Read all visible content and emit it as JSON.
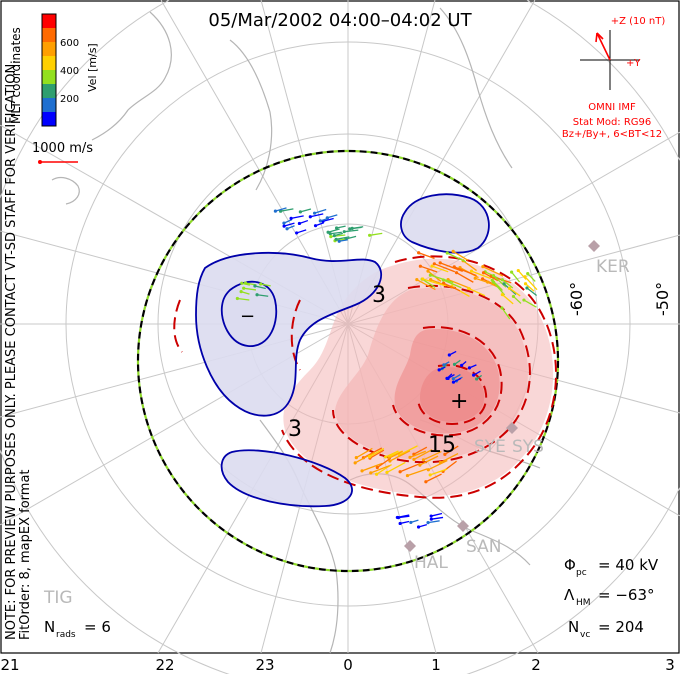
{
  "title": "05/Mar/2002 04:00–04:02 UT",
  "coord_label": "MLT coordinates",
  "note_line1": "NOTE: FOR PREVIEW PURPOSES ONLY. PLEASE CONTACT VT-SD STAFF FOR VERIFICATION.",
  "note_line2": "FitOrder: 8, mapEX format",
  "velocity_scale": {
    "label": "Vel [m/s]",
    "ticks": [
      "600",
      "400",
      "200"
    ],
    "colors": [
      "#ff0000",
      "#ff6a00",
      "#ff9f00",
      "#ffd000",
      "#93e01f",
      "#2f9f6f",
      "#1f6fcf",
      "#0000ff"
    ]
  },
  "reference_vector": {
    "label": "1000 m/s",
    "color": "#ff0000"
  },
  "imf": {
    "z_label": "+Z (10 nT)",
    "y_label": "+Y",
    "source": "OMNI IMF",
    "model_line1": "Stat Mod: RG96",
    "model_line2": "Bz+/By+, 6<BT<12",
    "color": "#ff0000"
  },
  "latitude_labels": [
    "-60°",
    "-50°"
  ],
  "contour_labels": {
    "neg1": "3",
    "neg2": "3",
    "pos_min": "+",
    "neg_max": "−",
    "mid": "15"
  },
  "stations": [
    "KER",
    "SYE",
    "SYS",
    "HAL",
    "SAN",
    "TIG"
  ],
  "stats": {
    "phi_pc": {
      "sym": "Φ",
      "sub": "pc",
      "value": "= 40 kV"
    },
    "lambda_hm": {
      "sym": "Λ",
      "sub": "HM",
      "value": "= −63°"
    },
    "n_vc": {
      "sym": "N",
      "sub": "vc",
      "value": "= 204"
    },
    "n_rads": {
      "sym": "N",
      "sub": "rads",
      "value": "= 6"
    }
  },
  "mlt_axis": [
    "21",
    "22",
    "23",
    "0",
    "1",
    "2",
    "3"
  ],
  "colors": {
    "positive_fill": "#f4b6b6",
    "positive_core": "#ee8a8a",
    "negative_fill": "#dcdcef",
    "positive_contour": "#cc0000",
    "negative_contour": "#0000aa",
    "grid": "#c8c8c8",
    "coast": "#bbbbbb"
  }
}
